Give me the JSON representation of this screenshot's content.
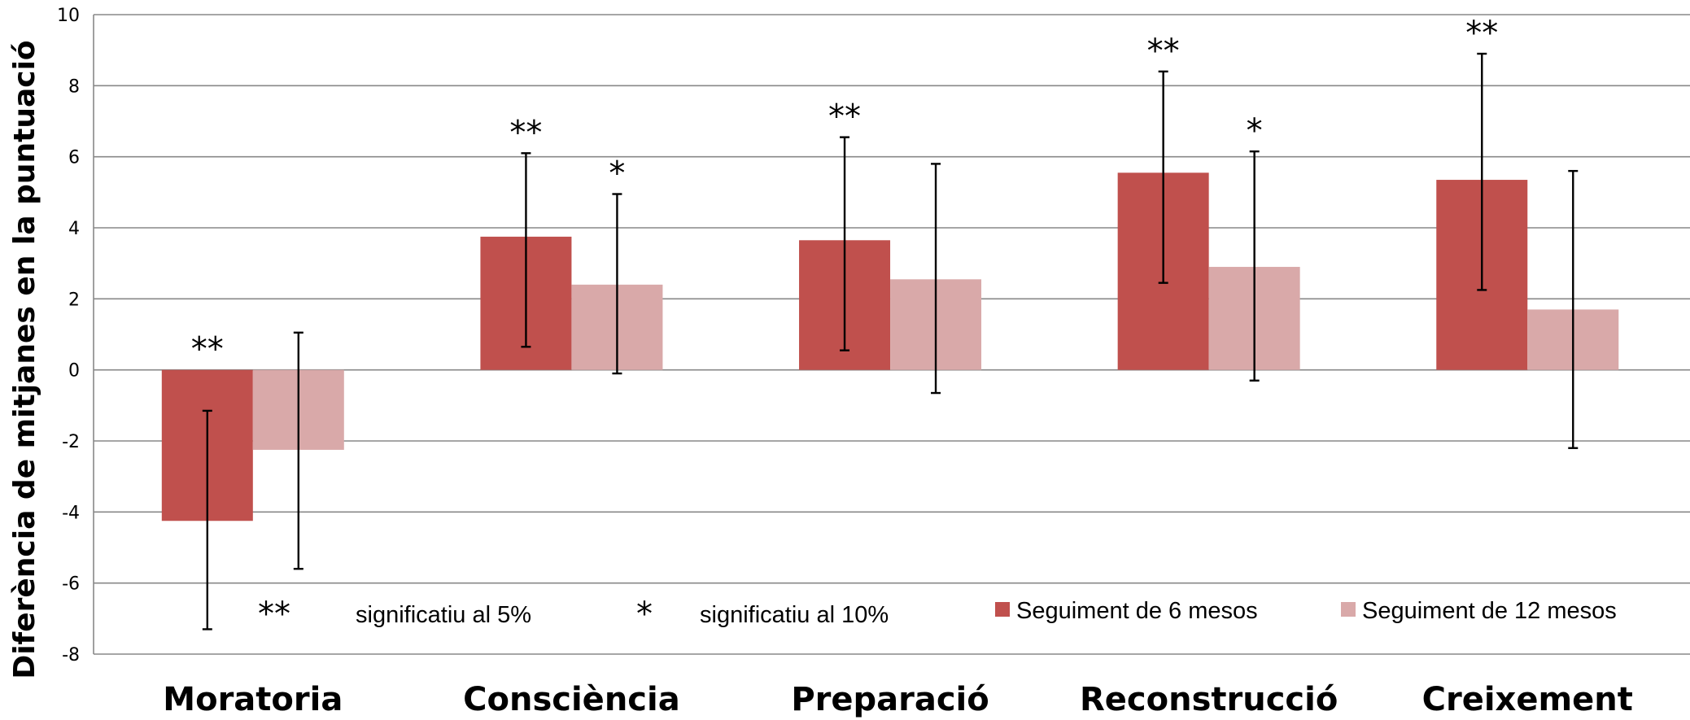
{
  "chart_data": {
    "type": "bar",
    "ylabel": "Diferència de mitjanes en la puntuació",
    "ylim": [
      -8,
      10
    ],
    "yticks": [
      -8,
      -6,
      -4,
      -2,
      0,
      2,
      4,
      6,
      8,
      10
    ],
    "grid": true,
    "legend_position": "bottom-right",
    "categories": [
      "Moratoria",
      "Consciència",
      "Preparació",
      "Reconstrucció",
      "Creixement"
    ],
    "series": [
      {
        "name": "Seguiment de 6 mesos",
        "color": "#c0504d",
        "values": [
          -4.25,
          3.75,
          3.65,
          5.55,
          5.35
        ],
        "err_low": [
          -7.3,
          0.65,
          0.55,
          2.45,
          2.25
        ],
        "err_high": [
          -1.15,
          6.1,
          6.55,
          8.4,
          8.9
        ],
        "significance": [
          "**",
          "**",
          "**",
          "**",
          "**"
        ]
      },
      {
        "name": "Seguiment de 12 mesos",
        "color": "#d9a9a9",
        "values": [
          -2.25,
          2.4,
          2.55,
          2.9,
          1.7
        ],
        "err_low": [
          -5.6,
          -0.1,
          -0.65,
          -0.3,
          -2.2
        ],
        "err_high": [
          1.05,
          4.95,
          5.8,
          6.15,
          5.6
        ],
        "significance": [
          "",
          "*",
          "",
          "*",
          ""
        ]
      }
    ],
    "significance_legend": [
      {
        "symbol": "**",
        "label": "significatiu al 5%"
      },
      {
        "symbol": "*",
        "label": "significatiu al 10%"
      }
    ]
  }
}
